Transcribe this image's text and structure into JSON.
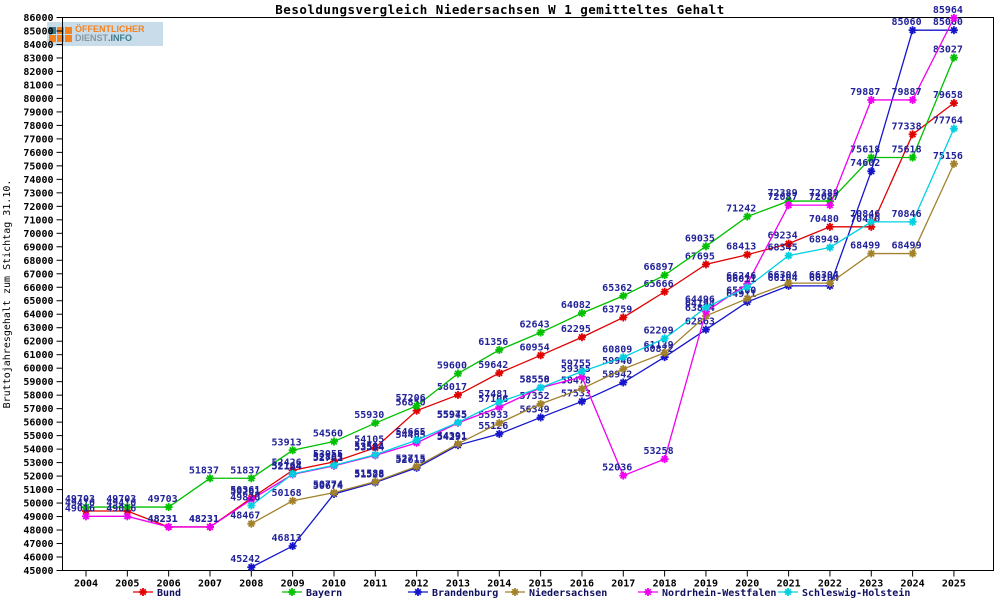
{
  "title": "Besoldungsvergleich Niedersachsen W 1 gemitteltes Gehalt",
  "logo": {
    "top": "ÖFFENTLICHER",
    "bottom_left": "DIENST",
    "bottom_right": ".INFO"
  },
  "chart_data": {
    "type": "line",
    "title": "Besoldungsvergleich Niedersachsen W 1 gemitteltes Gehalt",
    "ylabel": "Bruttojahresgehalt zum Stichtag 31.10.",
    "xlabel": "",
    "x_labels": [
      "2004",
      "2005",
      "2006",
      "2007",
      "2008",
      "2009",
      "2010",
      "2011",
      "2012",
      "2013",
      "2014",
      "2015",
      "2016",
      "2017",
      "2018",
      "2019",
      "2020",
      "2021",
      "2022",
      "2023",
      "2024",
      "2025"
    ],
    "ylim": [
      45000,
      86000
    ],
    "ytick_step": 1000,
    "grid": false,
    "legend_position": "bottom",
    "point_label_color": "#22229a",
    "axis_color": "#000000",
    "series": [
      {
        "name": "Bund",
        "color": "#e00000",
        "values": [
          49410,
          49410,
          48231,
          48231,
          50361,
          52426,
          53055,
          54105,
          56850,
          58017,
          59642,
          60954,
          62295,
          63759,
          65666,
          67695,
          68413,
          69234,
          70480,
          70480,
          77338,
          79658
        ]
      },
      {
        "name": "Bayern",
        "color": "#00c000",
        "values": [
          49703,
          49703,
          49703,
          51837,
          51837,
          53913,
          54560,
          55930,
          57206,
          59600,
          61356,
          62643,
          64082,
          65362,
          66897,
          69035,
          71242,
          72389,
          72389,
          75618,
          75618,
          83027
        ]
      },
      {
        "name": "Brandenburg",
        "color": "#1515cc",
        "values": [
          null,
          null,
          null,
          null,
          45242,
          46813,
          50674,
          51528,
          52615,
          54291,
          55126,
          56349,
          57533,
          58942,
          60822,
          62863,
          64911,
          66104,
          66104,
          74602,
          85060,
          85060
        ]
      },
      {
        "name": "Niedersachsen",
        "color": "#a2832b",
        "values": [
          null,
          null,
          null,
          null,
          48467,
          50168,
          50774,
          51588,
          52715,
          54391,
          55933,
          57352,
          58478,
          59940,
          61139,
          63874,
          65160,
          66304,
          66304,
          68499,
          68499,
          75156
        ]
      },
      {
        "name": "Nordrhein-Westfalen",
        "color": "#f000f0",
        "values": [
          49016,
          49016,
          48231,
          48231,
          50261,
          52124,
          52761,
          53534,
          54465,
          55945,
          57106,
          58550,
          59355,
          52036,
          53258,
          64194,
          66246,
          72087,
          72087,
          79887,
          79887,
          85964
        ]
      },
      {
        "name": "Schleswig-Holstein",
        "color": "#00d0e0",
        "values": [
          null,
          null,
          null,
          null,
          49820,
          52164,
          52805,
          53584,
          54665,
          55975,
          57481,
          58558,
          59755,
          60809,
          62209,
          64496,
          66011,
          68345,
          68949,
          70846,
          70846,
          77764
        ]
      }
    ]
  }
}
